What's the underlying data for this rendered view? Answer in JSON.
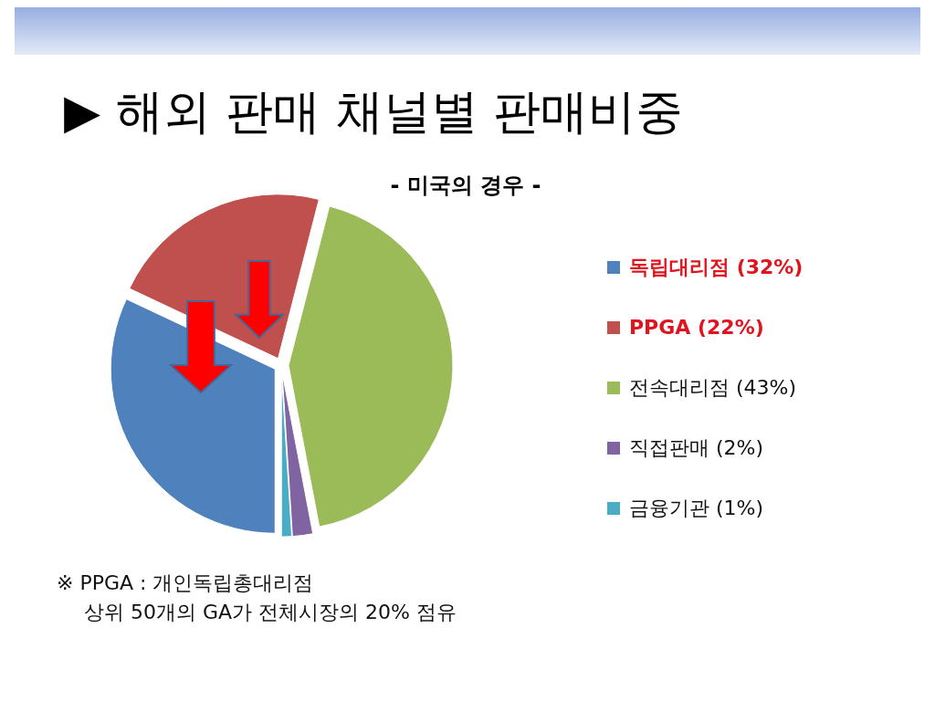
{
  "chart_data": {
    "type": "pie",
    "title": "▶ 해외 판매 채널별 판매비중",
    "subtitle": "- 미국의 경우 -",
    "categories": [
      "독립대리점 (32%)",
      "PPGA (22%)",
      "전속대리점 (43%)",
      "직접판매 (2%)",
      "금융기관 (1%)"
    ],
    "values": [
      32,
      22,
      43,
      2,
      1
    ],
    "colors": [
      "#4f81bd",
      "#c0504d",
      "#9bbb59",
      "#8064a2",
      "#4bacc6"
    ],
    "legend": "right",
    "annotations": [
      "※ PPGA : 개인독립총대리점",
      "상위 50개의 GA가 전체시장의 20% 점유"
    ]
  }
}
